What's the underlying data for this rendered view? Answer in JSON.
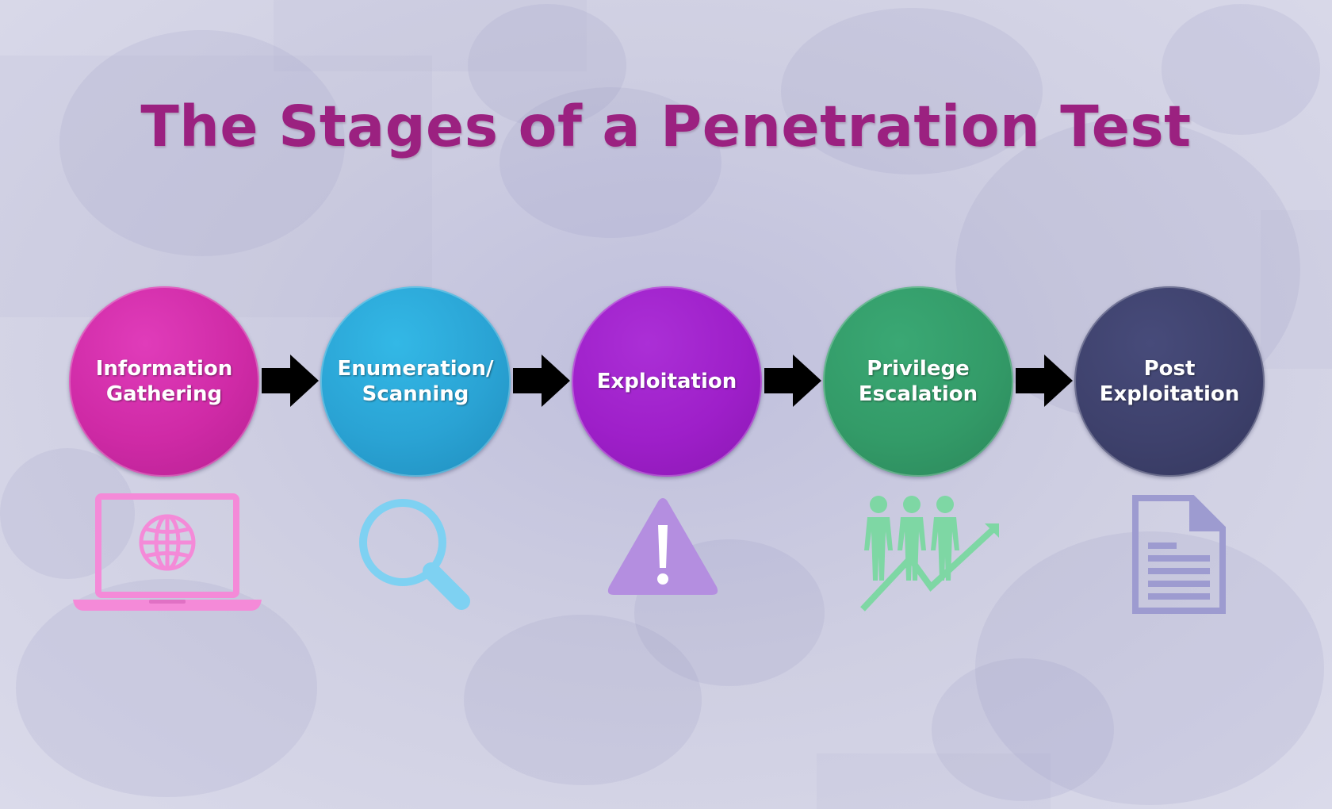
{
  "title": "The Stages of a Penetration Test",
  "stages": [
    {
      "lines": [
        "Information",
        "Gathering"
      ],
      "color": "#d02ca8",
      "icon": "laptop-globe-icon",
      "icon_color": "#f48ad8"
    },
    {
      "lines": [
        "Enumeration/",
        "Scanning"
      ],
      "color": "#2aa3d4",
      "icon": "magnifier-icon",
      "icon_color": "#7ed1f2"
    },
    {
      "lines": [
        "Exploitation"
      ],
      "color": "#9e1fc9",
      "icon": "warning-icon",
      "icon_color": "#b48ee0"
    },
    {
      "lines": [
        "Privilege",
        "Escalation"
      ],
      "color": "#339b68",
      "icon": "people-growth-icon",
      "icon_color": "#7ed7a4"
    },
    {
      "lines": [
        "Post",
        "Exploitation"
      ],
      "color": "#3e416c",
      "icon": "document-icon",
      "icon_color": "#9d9bd0"
    }
  ]
}
